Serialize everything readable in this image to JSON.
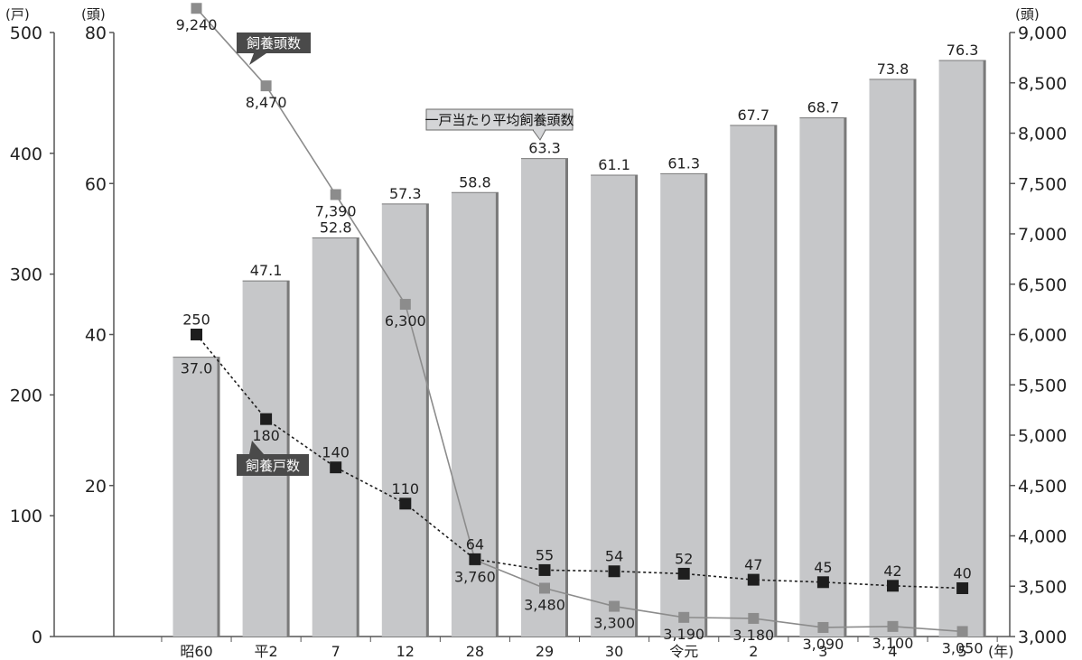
{
  "chart_data": {
    "type": "bar",
    "categories": [
      "昭60",
      "平2",
      "7",
      "12",
      "28",
      "29",
      "30",
      "令元",
      "2",
      "3",
      "4",
      "5"
    ],
    "x_unit": "(年)",
    "series": [
      {
        "name": "一戸当たり平均飼養頭数",
        "type": "bar",
        "axis": "heads_per_farm",
        "values": [
          37.0,
          47.1,
          52.8,
          57.3,
          58.8,
          63.3,
          61.1,
          61.3,
          67.7,
          68.7,
          73.8,
          76.3
        ],
        "labels": [
          "37.0",
          "47.1",
          "52.8",
          "57.3",
          "58.8",
          "63.3",
          "61.1",
          "61.3",
          "67.7",
          "68.7",
          "73.8",
          "76.3"
        ],
        "color": "#c6c7c9"
      },
      {
        "name": "飼養頭数",
        "type": "line",
        "axis": "heads",
        "values": [
          9240,
          8470,
          7390,
          6300,
          3760,
          3480,
          3300,
          3190,
          3180,
          3090,
          3100,
          3050
        ],
        "labels": [
          "9,240",
          "8,470",
          "7,390",
          "6,300",
          "3,760",
          "3,480",
          "3,300",
          "3,190",
          "3,180",
          "3,090",
          "3,100",
          "3,050"
        ],
        "color": "#8c8c8c"
      },
      {
        "name": "飼養戸数",
        "type": "line",
        "axis": "farms",
        "values": [
          250,
          180,
          140,
          110,
          64,
          55,
          54,
          52,
          47,
          45,
          42,
          40
        ],
        "labels": [
          "250",
          "180",
          "140",
          "110",
          "64",
          "55",
          "54",
          "52",
          "47",
          "45",
          "42",
          "40"
        ],
        "color": "#1e1e1e"
      }
    ],
    "axes": {
      "farms": {
        "unit": "(戸)",
        "ylim": [
          0,
          500
        ],
        "ticks": [
          0,
          100,
          200,
          300,
          400,
          500
        ],
        "tick_labels": [
          "0",
          "100",
          "200",
          "300",
          "400",
          "500"
        ]
      },
      "heads_per_farm": {
        "unit": "(頭)",
        "ylim": [
          0,
          80
        ],
        "ticks": [
          20,
          40,
          60,
          80
        ],
        "tick_labels": [
          "20",
          "40",
          "60",
          "80"
        ]
      },
      "heads": {
        "unit": "(頭)",
        "ylim": [
          3000,
          9000
        ],
        "ticks": [
          3000,
          3500,
          4000,
          4500,
          5000,
          5500,
          6000,
          6500,
          7000,
          7500,
          8000,
          8500,
          9000
        ],
        "tick_labels": [
          "3,000",
          "3,500",
          "4,000",
          "4,500",
          "5,000",
          "5,500",
          "6,000",
          "6,500",
          "7,000",
          "7,500",
          "8,000",
          "8,500",
          "9,000"
        ]
      }
    },
    "annotations": [
      "飼養頭数",
      "一戸当たり平均飼養頭数",
      "飼養戸数"
    ],
    "grid": false,
    "legend": "callouts"
  }
}
